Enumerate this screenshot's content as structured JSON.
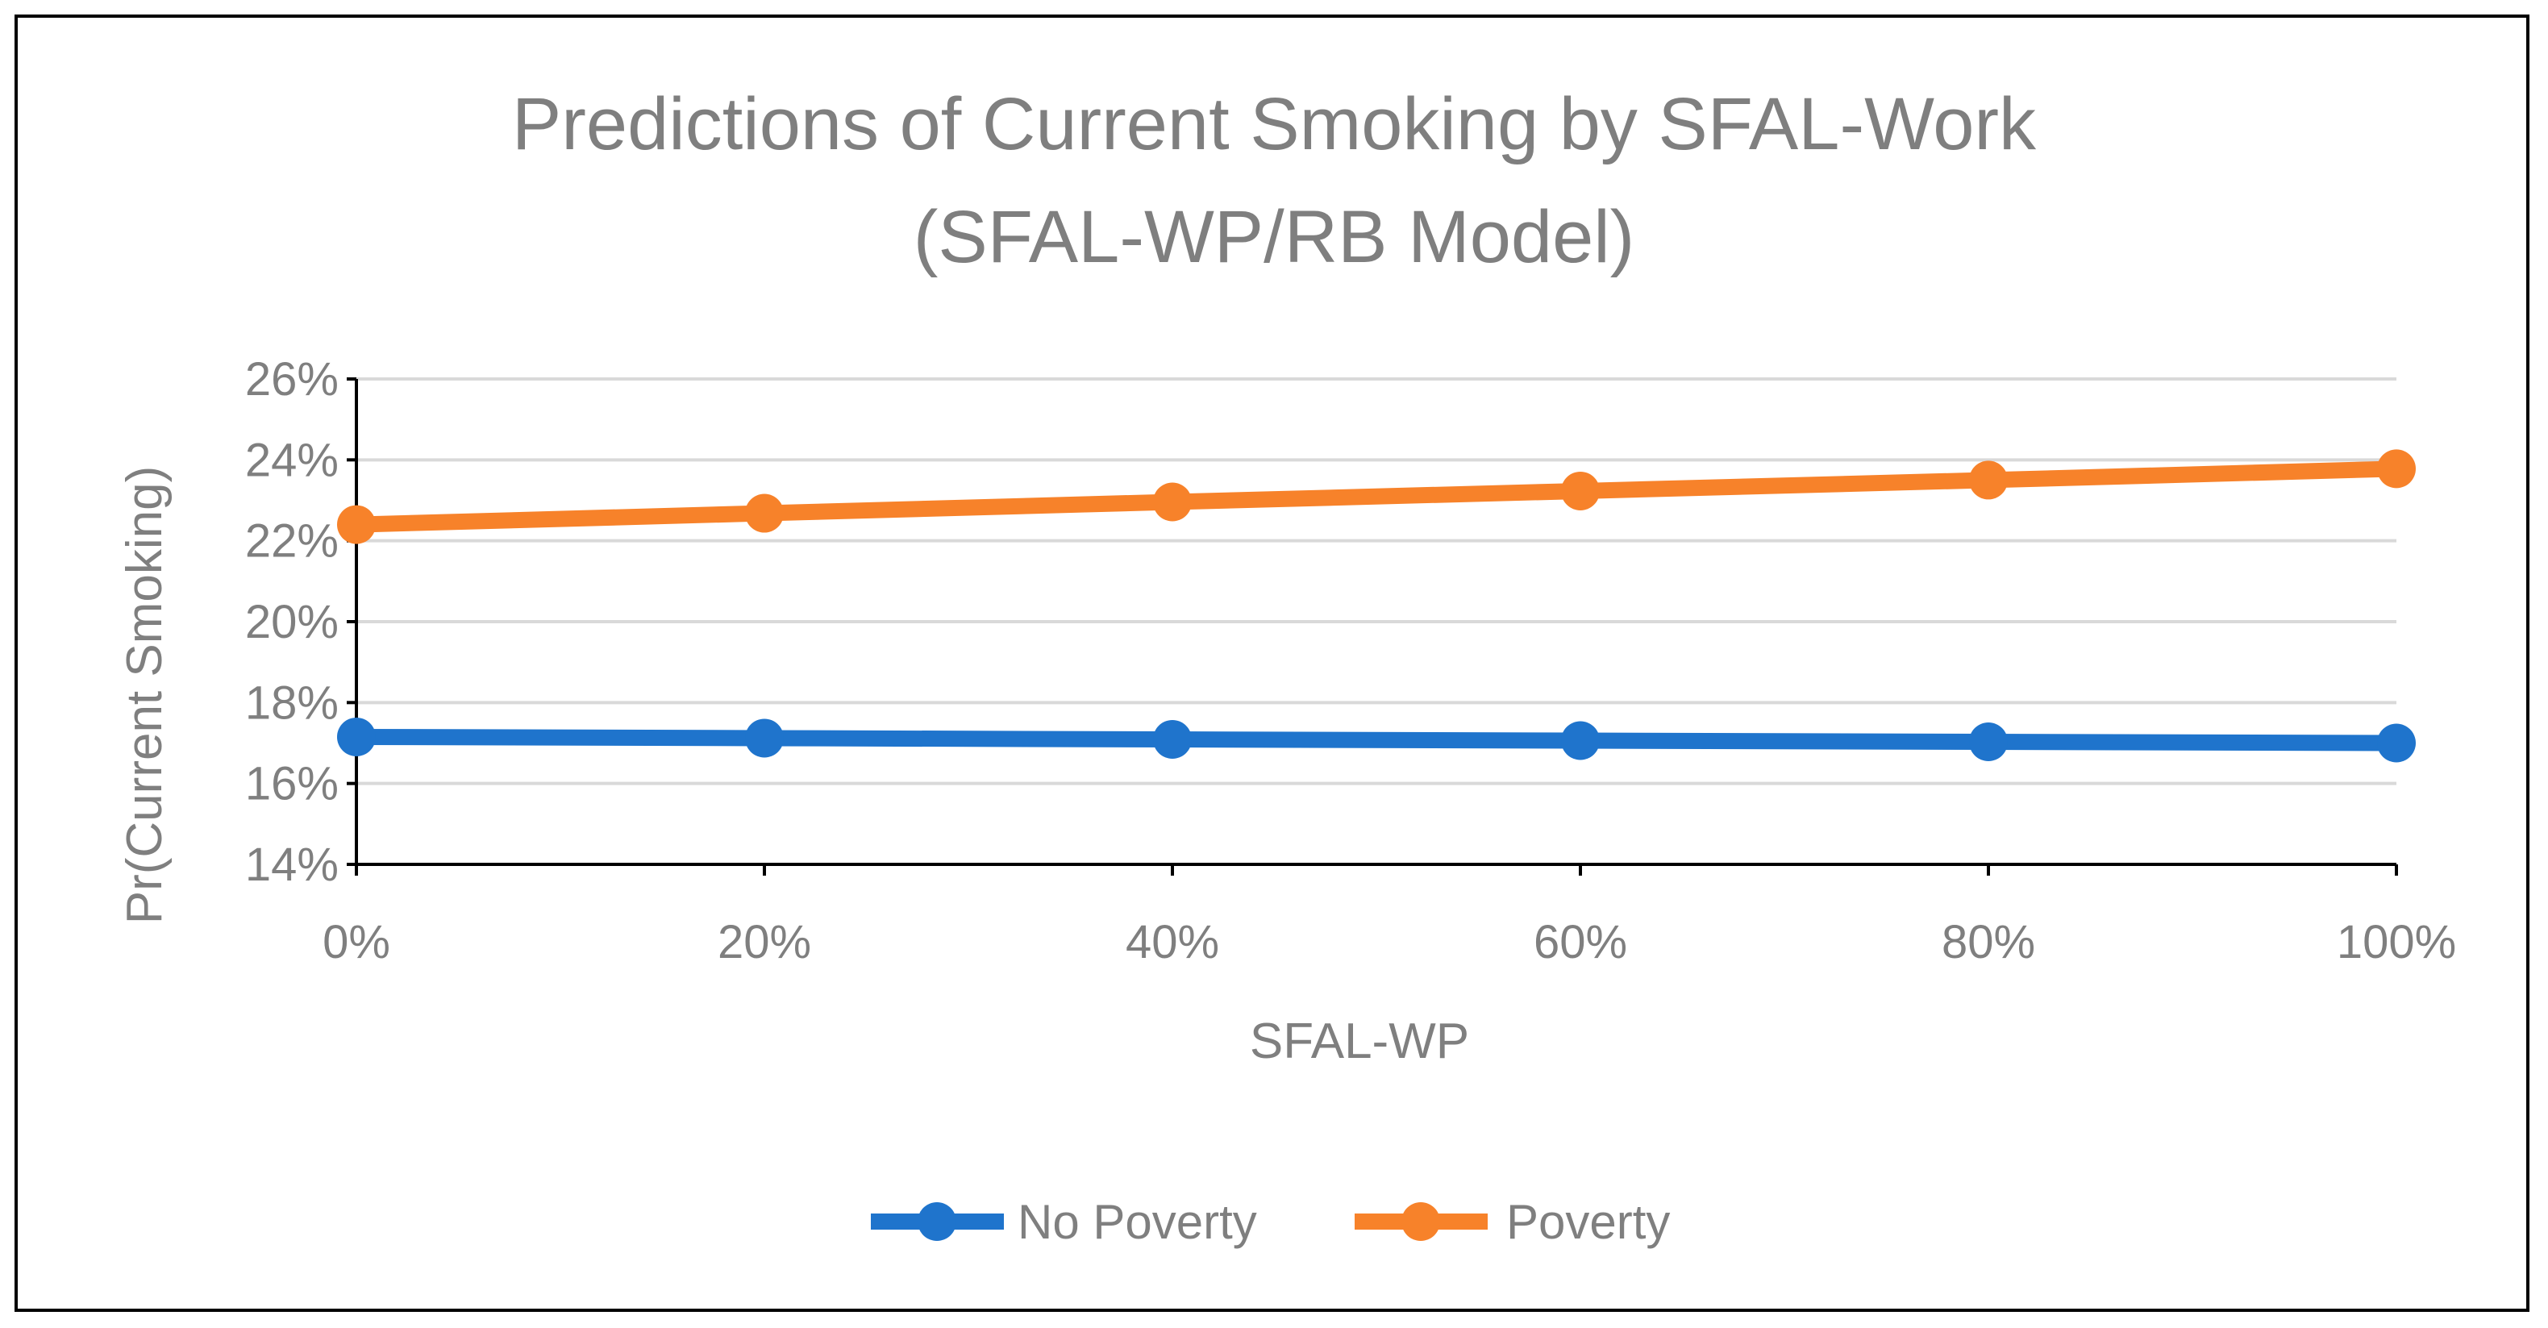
{
  "chart_data": {
    "type": "line",
    "title_lines": [
      "Predictions of Current Smoking by SFAL-Work",
      "(SFAL-WP/RB Model)"
    ],
    "xlabel": "SFAL-WP",
    "ylabel": "Pr(Current Smoking)",
    "categories": [
      "0%",
      "20%",
      "40%",
      "60%",
      "80%",
      "100%"
    ],
    "x": [
      0,
      20,
      40,
      60,
      80,
      100
    ],
    "ylim": [
      0.14,
      0.26
    ],
    "yticks": [
      0.14,
      0.16,
      0.18,
      0.2,
      0.22,
      0.24,
      0.26
    ],
    "ytick_labels": [
      "14%",
      "16%",
      "18%",
      "20%",
      "22%",
      "24%",
      "26%"
    ],
    "grid": true,
    "legend_position": "bottom",
    "series": [
      {
        "name": "No Poverty",
        "color": "#1f74cc",
        "values": [
          0.1715,
          0.1712,
          0.1709,
          0.1706,
          0.1703,
          0.17
        ]
      },
      {
        "name": "Poverty",
        "color": "#f7822a",
        "values": [
          0.224,
          0.2268,
          0.2296,
          0.2323,
          0.235,
          0.2378
        ]
      }
    ],
    "colors": {
      "text": "#7f7f7f",
      "gridline": "#d9d9d9",
      "axis": "#000000",
      "border": "#000000"
    }
  }
}
